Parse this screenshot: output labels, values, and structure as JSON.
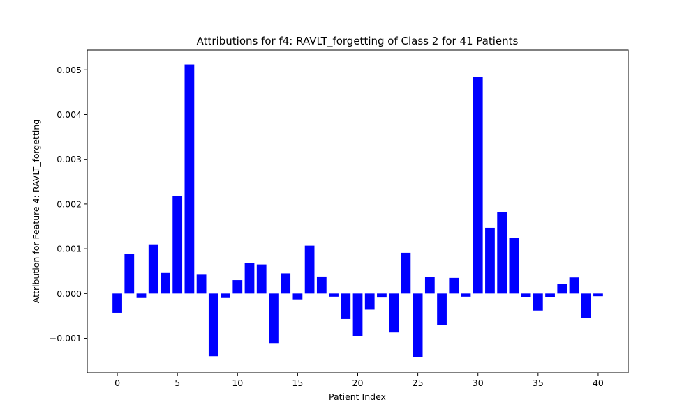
{
  "chart_data": {
    "type": "bar",
    "title": "Attributions for f4: RAVLT_forgetting of Class 2 for 41 Patients",
    "xlabel": "Patient Index",
    "ylabel": "Attribution for Feature 4: RAVLT_forgetting",
    "x": [
      0,
      1,
      2,
      3,
      4,
      5,
      6,
      7,
      8,
      9,
      10,
      11,
      12,
      13,
      14,
      15,
      16,
      17,
      18,
      19,
      20,
      21,
      22,
      23,
      24,
      25,
      26,
      27,
      28,
      29,
      30,
      31,
      32,
      33,
      34,
      35,
      36,
      37,
      38,
      39,
      40
    ],
    "values": [
      -0.00043,
      0.00088,
      -0.0001,
      0.0011,
      0.00046,
      0.00218,
      0.00512,
      0.00042,
      -0.0014,
      -0.0001,
      0.0003,
      0.00068,
      0.00065,
      -0.00112,
      0.00045,
      -0.00013,
      0.00107,
      0.00038,
      -7e-05,
      -0.00057,
      -0.00096,
      -0.00036,
      -9e-05,
      -0.00087,
      0.00091,
      -0.00142,
      0.00037,
      -0.00071,
      0.00035,
      -7e-05,
      0.00484,
      0.00147,
      0.00182,
      0.00124,
      -8e-05,
      -0.00038,
      -8e-05,
      0.00021,
      0.00036,
      -0.00054,
      -6e-05
    ],
    "xlim": [
      -2.5,
      42.5
    ],
    "ylim": [
      -0.00177,
      0.00544
    ],
    "x_ticks": [
      0,
      5,
      10,
      15,
      20,
      25,
      30,
      35,
      40
    ],
    "x_tick_labels": [
      "0",
      "5",
      "10",
      "15",
      "20",
      "25",
      "30",
      "35",
      "40"
    ],
    "y_ticks": [
      -0.001,
      0.0,
      0.001,
      0.002,
      0.003,
      0.004,
      0.005
    ],
    "y_tick_labels": [
      "−0.001",
      "0.000",
      "0.001",
      "0.002",
      "0.003",
      "0.004",
      "0.005"
    ],
    "bar_color": "#0000ff",
    "grid": false,
    "legend": "none"
  }
}
